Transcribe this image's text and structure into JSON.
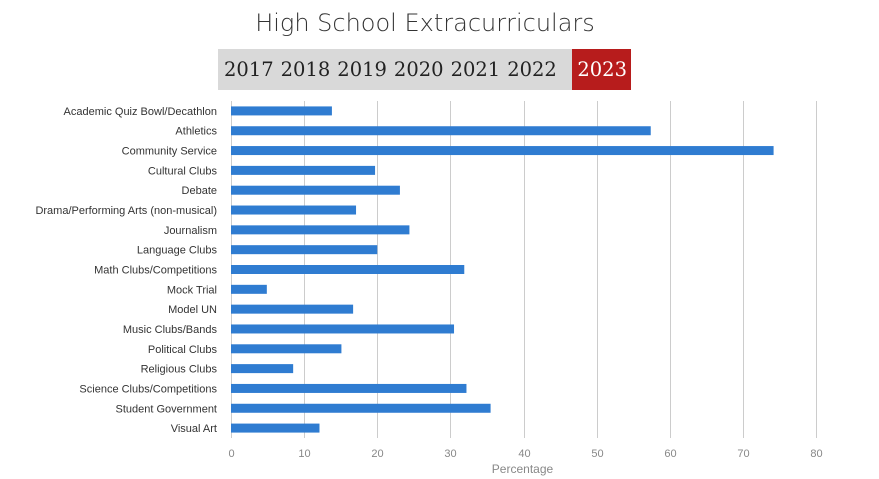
{
  "years": [
    {
      "label": "2017",
      "active": false
    },
    {
      "label": "2018",
      "active": false
    },
    {
      "label": "2019",
      "active": false
    },
    {
      "label": "2020",
      "active": false
    },
    {
      "label": "2021",
      "active": false
    },
    {
      "label": "2022",
      "active": false
    },
    {
      "label": "2023",
      "active": true
    }
  ],
  "colors": {
    "bar": "#2f7cd1",
    "grid": "#cccccc",
    "active_year": "#b71c1c",
    "year_bar_bg": "#d9d9d9"
  },
  "chart_data": {
    "type": "bar",
    "orientation": "horizontal",
    "title": "High School Extracurriculars",
    "xlabel": "Percentage",
    "ylabel": "",
    "xlim": [
      0,
      80
    ],
    "xticks": [
      0,
      10,
      20,
      30,
      40,
      50,
      60,
      70,
      80
    ],
    "categories": [
      "Academic Quiz Bowl/Decathlon",
      "Athletics",
      "Community Service",
      "Cultural Clubs",
      "Debate",
      "Drama/Performing Arts (non-musical)",
      "Journalism",
      "Language Clubs",
      "Math Clubs/Competitions",
      "Mock Trial",
      "Model UN",
      "Music Clubs/Bands",
      "Political Clubs",
      "Religious Clubs",
      "Science Clubs/Competitions",
      "Student Government",
      "Visual Art"
    ],
    "values": [
      13.8,
      57.4,
      74.2,
      19.7,
      23.1,
      17.1,
      24.4,
      20.0,
      31.9,
      4.9,
      16.7,
      30.5,
      15.1,
      8.5,
      32.2,
      35.5,
      12.1
    ],
    "grid": true
  }
}
